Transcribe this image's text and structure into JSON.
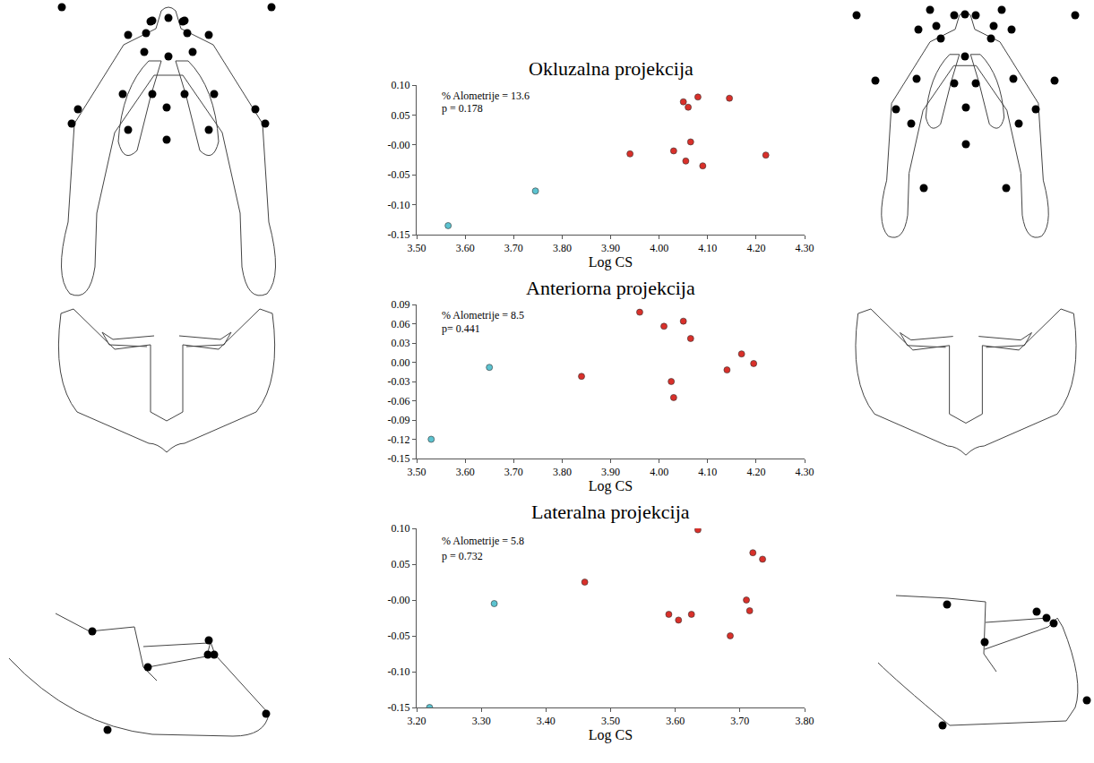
{
  "chart_data": [
    {
      "type": "scatter",
      "title": "Okluzalna projekcija",
      "x_label": "Log CS",
      "grid": false,
      "annotations": [
        "% Alometrije = 13.6",
        "p = 0.178"
      ],
      "xlim": [
        3.5,
        4.3
      ],
      "xticks": [
        {
          "value": 3.5,
          "label": "3.50"
        },
        {
          "value": 3.6,
          "label": "3.60"
        },
        {
          "value": 3.7,
          "label": "3.70"
        },
        {
          "value": 3.8,
          "label": "3.80"
        },
        {
          "value": 3.9,
          "label": "3.90"
        },
        {
          "value": 4.0,
          "label": "4.00"
        },
        {
          "value": 4.1,
          "label": "4.10"
        },
        {
          "value": 4.2,
          "label": "4.20"
        },
        {
          "value": 4.3,
          "label": "4.30"
        }
      ],
      "ylim": [
        -0.15,
        0.1
      ],
      "yticks": [
        {
          "value": -0.15,
          "label": "-0.15"
        },
        {
          "value": -0.1,
          "label": "-0.10"
        },
        {
          "value": -0.05,
          "label": "-0.05"
        },
        {
          "value": 0,
          "label": "-0.00"
        },
        {
          "value": 0.05,
          "label": "0.05"
        },
        {
          "value": 0.1,
          "label": "0.10"
        }
      ],
      "series": [
        {
          "color": "#5cc3d0",
          "marker": "circle",
          "x": [
            3.565,
            3.745
          ],
          "values": [
            -0.135,
            -0.077
          ]
        },
        {
          "color": "#d9302a",
          "marker": "circle",
          "x": [
            3.94,
            4.03,
            4.05,
            4.055,
            4.06,
            4.065,
            4.08,
            4.09,
            4.145,
            4.22
          ],
          "values": [
            -0.015,
            -0.01,
            0.072,
            -0.027,
            0.063,
            0.005,
            0.08,
            -0.035,
            0.078,
            -0.017
          ]
        }
      ]
    },
    {
      "type": "scatter",
      "title": "Anteriorna projekcija",
      "x_label": "Log CS",
      "grid": false,
      "annotations": [
        "% Alometrije = 8.5",
        "p= 0.441"
      ],
      "xlim": [
        3.5,
        4.3
      ],
      "xticks": [
        {
          "value": 3.5,
          "label": "3.50"
        },
        {
          "value": 3.6,
          "label": "3.60"
        },
        {
          "value": 3.7,
          "label": "3.70"
        },
        {
          "value": 3.8,
          "label": "3.80"
        },
        {
          "value": 3.9,
          "label": "3.90"
        },
        {
          "value": 4.0,
          "label": "4.00"
        },
        {
          "value": 4.1,
          "label": "4.10"
        },
        {
          "value": 4.2,
          "label": "4.20"
        },
        {
          "value": 4.3,
          "label": "4.30"
        }
      ],
      "ylim": [
        -0.15,
        0.09
      ],
      "yticks": [
        {
          "value": -0.15,
          "label": "-0.15"
        },
        {
          "value": -0.12,
          "label": "-0.12"
        },
        {
          "value": -0.09,
          "label": "-0.09"
        },
        {
          "value": -0.06,
          "label": "-0.06"
        },
        {
          "value": -0.03,
          "label": "-0.03"
        },
        {
          "value": 0,
          "label": "0.00"
        },
        {
          "value": 0.03,
          "label": "0.03"
        },
        {
          "value": 0.06,
          "label": "0.06"
        },
        {
          "value": 0.09,
          "label": "0.09"
        }
      ],
      "series": [
        {
          "color": "#5cc3d0",
          "marker": "circle",
          "x": [
            3.53,
            3.65
          ],
          "values": [
            -0.12,
            -0.008
          ]
        },
        {
          "color": "#d9302a",
          "marker": "circle",
          "x": [
            3.84,
            3.96,
            4.01,
            4.025,
            4.03,
            4.05,
            4.065,
            4.14,
            4.17,
            4.195
          ],
          "values": [
            -0.022,
            0.078,
            0.056,
            -0.03,
            -0.055,
            0.064,
            0.037,
            -0.012,
            0.013,
            -0.002
          ]
        }
      ]
    },
    {
      "type": "scatter",
      "title": "Lateralna projekcija",
      "x_label": "Log CS",
      "grid": false,
      "annotations": [
        "% Alometrije = 5.8",
        "p = 0.732"
      ],
      "xlim": [
        3.2,
        3.8
      ],
      "xticks": [
        {
          "value": 3.2,
          "label": "3.20"
        },
        {
          "value": 3.3,
          "label": "3.30"
        },
        {
          "value": 3.4,
          "label": "3.40"
        },
        {
          "value": 3.5,
          "label": "3.50"
        },
        {
          "value": 3.6,
          "label": "3.60"
        },
        {
          "value": 3.7,
          "label": "3.70"
        },
        {
          "value": 3.8,
          "label": "3.80"
        }
      ],
      "ylim": [
        -0.15,
        0.1
      ],
      "yticks": [
        {
          "value": -0.15,
          "label": "-0.15"
        },
        {
          "value": -0.1,
          "label": "-0.10"
        },
        {
          "value": -0.05,
          "label": "-0.05"
        },
        {
          "value": 0,
          "label": "-0.00"
        },
        {
          "value": 0.05,
          "label": "0.05"
        },
        {
          "value": 0.1,
          "label": "0.10"
        }
      ],
      "series": [
        {
          "color": "#5cc3d0",
          "marker": "circle",
          "x": [
            3.22,
            3.32
          ],
          "values": [
            -0.15,
            -0.005
          ]
        },
        {
          "color": "#d9302a",
          "marker": "circle",
          "x": [
            3.46,
            3.59,
            3.605,
            3.625,
            3.635,
            3.685,
            3.71,
            3.715,
            3.72,
            3.735
          ],
          "values": [
            0.025,
            -0.02,
            -0.028,
            -0.02,
            0.098,
            -0.05,
            0.0,
            -0.015,
            0.066,
            0.057
          ]
        }
      ]
    }
  ]
}
